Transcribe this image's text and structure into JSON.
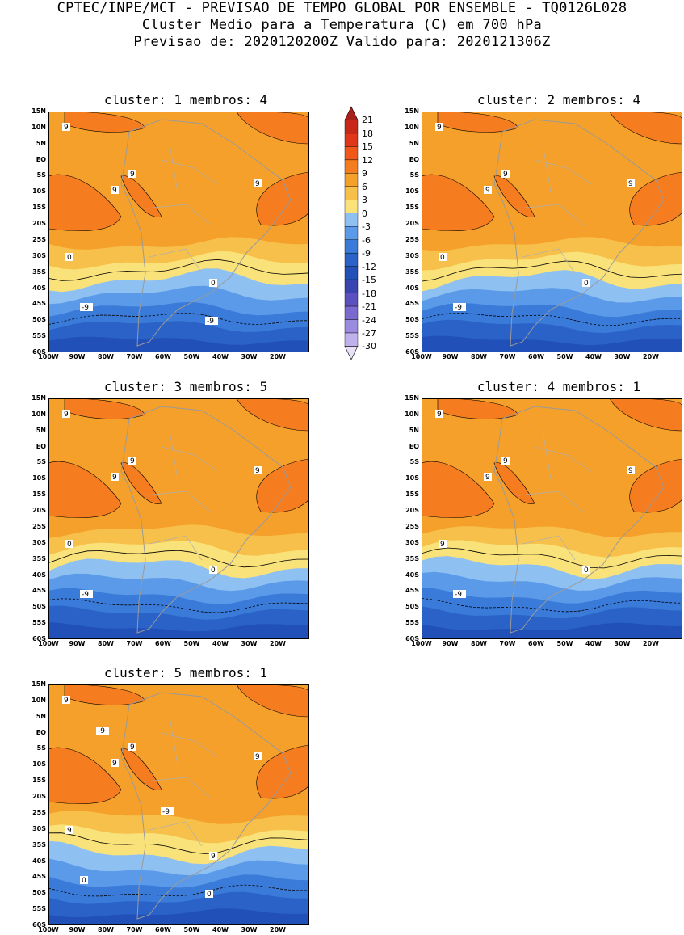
{
  "header": {
    "line1": "CPTEC/INPE/MCT - PREVISAO DE TEMPO GLOBAL POR ENSEMBLE - TQ0126L028",
    "line2": "Cluster Medio para a Temperatura (C) em 700 hPa",
    "line3": "Previsao de: 2020120200Z   Valido para: 2020121306Z"
  },
  "lat_labels": [
    "15N",
    "10N",
    "5N",
    "EQ",
    "5S",
    "10S",
    "15S",
    "20S",
    "25S",
    "30S",
    "35S",
    "40S",
    "45S",
    "50S",
    "55S",
    "60S"
  ],
  "lon_labels": [
    "100W",
    "90W",
    "80W",
    "70W",
    "60W",
    "50W",
    "40W",
    "30W",
    "20W"
  ],
  "panels": [
    {
      "title": "cluster: 1   membros: 4",
      "contour_labels": [
        "9",
        "9",
        "9",
        "9",
        "0",
        "0",
        "-9",
        "-9"
      ]
    },
    {
      "title": "cluster: 2   membros: 4",
      "contour_labels": [
        "9",
        "9",
        "9",
        "9",
        "0",
        "0",
        "-9"
      ]
    },
    {
      "title": "cluster: 3   membros: 5",
      "contour_labels": [
        "9",
        "9",
        "9",
        "9",
        "0",
        "0",
        "-9"
      ]
    },
    {
      "title": "cluster: 4   membros: 1",
      "contour_labels": [
        "9",
        "9",
        "9",
        "9",
        "9",
        "0",
        "-9"
      ]
    },
    {
      "title": "cluster: 5   membros: 1",
      "contour_labels": [
        "9",
        "9",
        "9",
        "9",
        "9",
        "9",
        "0",
        "0",
        "-9",
        "-9"
      ]
    }
  ],
  "colorbar": {
    "labels": [
      "21",
      "18",
      "15",
      "12",
      "9",
      "6",
      "3",
      "0",
      "-3",
      "-6",
      "-9",
      "-12",
      "-15",
      "-18",
      "-21",
      "-24",
      "-27",
      "-30"
    ],
    "colors": [
      "#a8201a",
      "#c8281a",
      "#e0361a",
      "#f0581a",
      "#f57d1f",
      "#f5a02a",
      "#f6c04a",
      "#fae27a",
      "#8ec0f2",
      "#5a9ae8",
      "#3a7ad8",
      "#2a62c8",
      "#2050b8",
      "#3a44b0",
      "#5a50c0",
      "#7a6ad0",
      "#9a8ae0",
      "#c0b0ee",
      "#e8e0f6"
    ]
  }
}
